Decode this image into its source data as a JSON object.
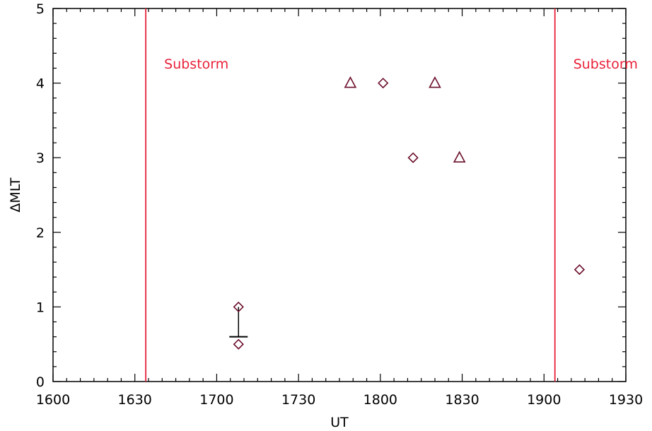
{
  "chart_data": {
    "type": "scatter",
    "title": "",
    "xlabel": "UT",
    "ylabel": "ΔMLT",
    "xlim": [
      "1600",
      "1930"
    ],
    "ylim": [
      0,
      5
    ],
    "x_ticks": [
      "1600",
      "1630",
      "1700",
      "1730",
      "1800",
      "1830",
      "1900",
      "1930"
    ],
    "y_ticks": [
      "0",
      "1",
      "2",
      "3",
      "4",
      "5"
    ],
    "grid": false,
    "legend": "none",
    "marker_color": "#6b0f2a",
    "annotation_color": "#e8213a",
    "series": [
      {
        "marker": "diamond",
        "points": [
          {
            "x": "1708",
            "y": 1.0
          },
          {
            "x": "1708",
            "y": 0.5
          },
          {
            "x": "1801",
            "y": 4.0
          },
          {
            "x": "1812",
            "y": 3.0
          },
          {
            "x": "1913",
            "y": 1.5
          }
        ]
      },
      {
        "marker": "triangle",
        "points": [
          {
            "x": "1749",
            "y": 4.0
          },
          {
            "x": "1820",
            "y": 4.0
          },
          {
            "x": "1829",
            "y": 3.0
          }
        ]
      }
    ],
    "error_bar": {
      "x": "1708",
      "y": 0.6,
      "y_low": 0.6,
      "y_high": 1.0
    },
    "annotations": [
      {
        "type": "vline",
        "x": "1634",
        "label": "Substorm"
      },
      {
        "type": "vline",
        "x": "1904",
        "label": "Substorm"
      }
    ]
  }
}
